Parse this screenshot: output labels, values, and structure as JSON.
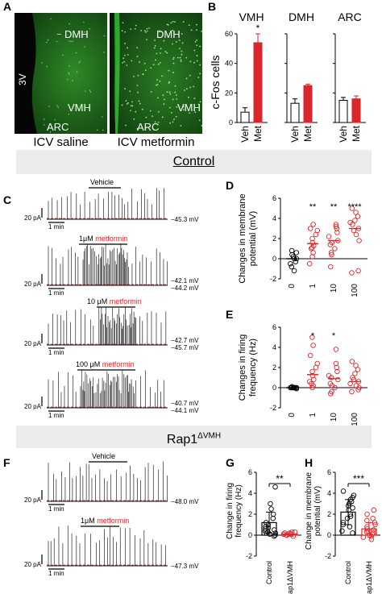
{
  "figure": {
    "panel_labels": [
      "A",
      "B",
      "C",
      "D",
      "E",
      "F",
      "G",
      "H"
    ],
    "panelA": {
      "left": {
        "label_3v": "3V",
        "dmh": "DMH",
        "vmh": "VMH",
        "arc": "ARC",
        "caption": "ICV saline"
      },
      "right": {
        "dmh": "DMH",
        "vmh": "VMH",
        "arc": "ARC",
        "caption": "ICV metformin"
      }
    },
    "banners": {
      "control": "Control",
      "rap1_base": "Rap1",
      "rap1_sup": "ΔVMH"
    },
    "panelC": {
      "traces": [
        {
          "label_prefix": "",
          "label_drug": "Vehicle",
          "v1": "−45.3 mV",
          "v2": ""
        },
        {
          "label_prefix": "1μM ",
          "label_drug": "metformin",
          "v1": "−42.1 mV",
          "v2": "−44.2 mV"
        },
        {
          "label_prefix": "10 μM ",
          "label_drug": "metformin",
          "v1": "−42.7 mV",
          "v2": "−45.7 mV"
        },
        {
          "label_prefix": "100 μM ",
          "label_drug": "metformin",
          "v1": "−40.7 mV",
          "v2": "−44.1 mV"
        }
      ],
      "scale_y": "20 pA",
      "scale_x": "1 min"
    },
    "panelF": {
      "traces": [
        {
          "label_prefix": "",
          "label_drug": "Vehicle",
          "v1": "−48.0 mV"
        },
        {
          "label_prefix": "1μM ",
          "label_drug": "metformin",
          "v1": "−47.3 mV"
        }
      ],
      "scale_y": "20 pA",
      "scale_x": "1 min"
    }
  },
  "chart_data": [
    {
      "panel": "B",
      "type": "bar",
      "ylabel": "c-Fos cells",
      "ylim": [
        0,
        60
      ],
      "yticks": [
        0,
        20,
        40,
        60
      ],
      "subplots": [
        {
          "title": "VMH",
          "categories": [
            "Veh",
            "Met"
          ],
          "values": [
            7,
            54
          ],
          "errors": [
            3,
            6
          ],
          "sig": [
            "",
            "*"
          ]
        },
        {
          "title": "DMH",
          "categories": [
            "Veh",
            "Met"
          ],
          "values": [
            13,
            25
          ],
          "errors": [
            3,
            1
          ],
          "sig": [
            "",
            ""
          ]
        },
        {
          "title": "ARC",
          "categories": [
            "Veh",
            "Met"
          ],
          "values": [
            15,
            16
          ],
          "errors": [
            2,
            2
          ],
          "sig": [
            "",
            ""
          ]
        }
      ],
      "colors": {
        "Veh": "#ffffff",
        "Met": "#d9262a"
      }
    },
    {
      "panel": "D",
      "type": "scatter",
      "ylabel": "Changes in membrane potential (mV)",
      "ylim": [
        -2,
        6
      ],
      "yticks": [
        -2,
        0,
        2,
        4,
        6
      ],
      "categories": [
        "0",
        "1",
        "10",
        "100"
      ],
      "means": [
        0,
        1.5,
        1.8,
        3.0
      ],
      "sig": [
        "",
        "**",
        "**",
        "****"
      ],
      "points": [
        [
          -0.8,
          -0.5,
          -0.3,
          0,
          0,
          0.2,
          0.4,
          0.6,
          -1.2,
          0.8
        ],
        [
          0.2,
          0.6,
          1,
          1.3,
          1.6,
          2,
          2.4,
          2.8,
          3,
          3.4,
          1.1,
          -0.5
        ],
        [
          -0.8,
          0.4,
          1,
          1.4,
          1.8,
          2.2,
          2.6,
          3,
          3.2,
          3.4,
          1.6,
          0.6
        ],
        [
          -1.4,
          -1.2,
          1.8,
          2.4,
          3,
          3.4,
          3.8,
          4.2,
          4.6,
          5,
          3.6,
          2.8
        ]
      ]
    },
    {
      "panel": "E",
      "type": "scatter",
      "ylabel": "Changes in firing frequency (Hz)",
      "ylim": [
        -2,
        6
      ],
      "yticks": [
        -2,
        0,
        2,
        4,
        6
      ],
      "categories": [
        "0",
        "1",
        "10",
        "100"
      ],
      "means": [
        0,
        1.3,
        0.9,
        0.6
      ],
      "sig": [
        "",
        "*",
        "*",
        ""
      ],
      "points": [
        [
          0,
          0,
          0,
          0,
          0,
          0,
          0.1,
          -0.1,
          0,
          0
        ],
        [
          0,
          0.2,
          0.4,
          0.8,
          1.2,
          1.6,
          2,
          2.4,
          3.2,
          4.2,
          5,
          0.6
        ],
        [
          -0.6,
          -0.4,
          0,
          0.4,
          0.8,
          1.2,
          1.6,
          2,
          2.4,
          3.8,
          0.2,
          1
        ],
        [
          -0.4,
          -0.2,
          0,
          0.2,
          0.6,
          1,
          1.4,
          1.8,
          2.2,
          2.6,
          0.4,
          0.8
        ]
      ]
    },
    {
      "panel": "G",
      "type": "bar",
      "ylabel": "Change in firing frequency (Hz)",
      "ylim": [
        -2,
        6
      ],
      "yticks": [
        -2,
        0,
        2,
        4,
        6
      ],
      "categories": [
        "Control",
        "Rap1ΔVMH"
      ],
      "values": [
        1.2,
        0.1
      ],
      "errors": [
        1.0,
        0.2
      ],
      "sig": "**",
      "points": [
        [
          4.6,
          3.0,
          2.5,
          2.0,
          1.6,
          1.2,
          1.0,
          0.8,
          0.6,
          0.4,
          0.2,
          0,
          0.1,
          0.3,
          0.5,
          -0.1,
          0.2,
          0.7
        ],
        [
          0.3,
          0.2,
          0.1,
          0,
          0,
          0.1,
          0.2,
          -0.1,
          0.3,
          0.1
        ]
      ]
    },
    {
      "panel": "H",
      "type": "bar",
      "ylabel": "Change in membrane potential (mV)",
      "ylim": [
        -2,
        6
      ],
      "yticks": [
        -2,
        0,
        2,
        4,
        6
      ],
      "categories": [
        "Control",
        "Rap1ΔVMH"
      ],
      "values": [
        2.2,
        0.6
      ],
      "errors": [
        1.2,
        0.6
      ],
      "sig": "***",
      "points": [
        [
          4.2,
          3.8,
          3.6,
          3.4,
          3.0,
          2.8,
          2.4,
          2.0,
          1.6,
          1.2,
          0.8,
          0.4,
          0.2,
          2.6,
          1.8,
          1.0,
          3.2
        ],
        [
          2.4,
          2.0,
          1.6,
          1.2,
          1.0,
          0.8,
          0.6,
          0.4,
          0.2,
          0,
          -0.2,
          -0.4,
          0.5,
          1.4,
          0.3,
          0.1,
          -0.1
        ]
      ]
    }
  ]
}
